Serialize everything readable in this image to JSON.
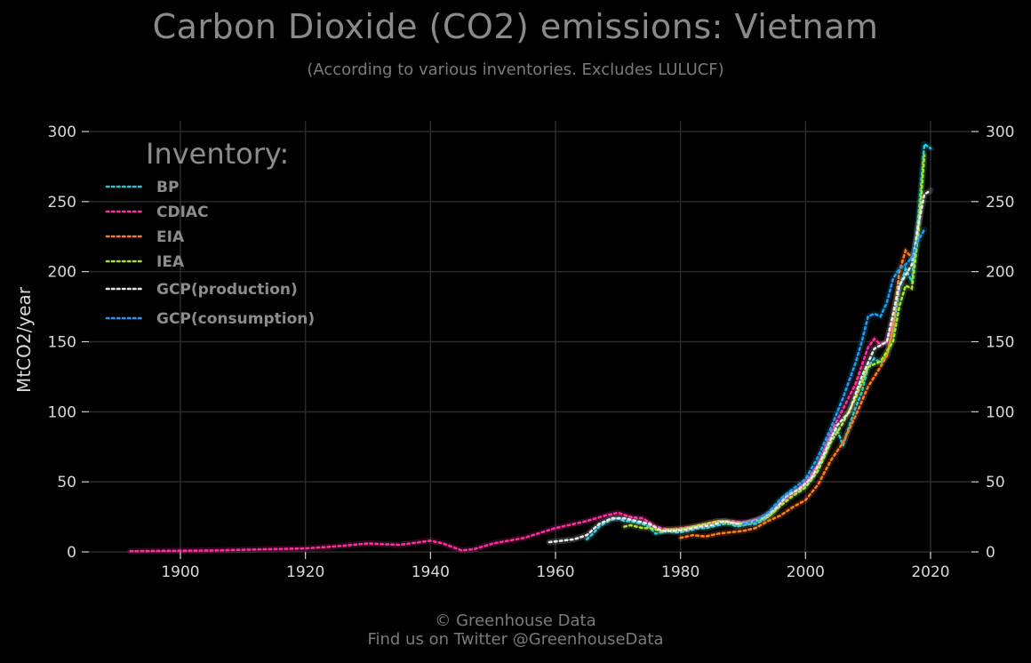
{
  "header": {
    "title": "Carbon Dioxide (CO2) emissions: Vietnam",
    "subtitle": "(According to various inventories. Excludes LULUCF)"
  },
  "footer": {
    "line1": "© Greenhouse Data",
    "line2": "Find us on Twitter @GreenhouseData"
  },
  "legend": {
    "title": "Inventory:",
    "placement": "top-left"
  },
  "colors": {
    "background": "#000000",
    "grid": "#2a2a2a",
    "axis_text": "#d8d8d8",
    "legend_text": "#8c8c8c"
  },
  "chart_data": {
    "type": "line",
    "title": "Carbon Dioxide (CO2) emissions: Vietnam",
    "subtitle": "(According to various inventories. Excludes LULUCF)",
    "xlabel": "",
    "ylabel": "MtCO2/year",
    "xlim": [
      1883,
      2026
    ],
    "ylim": [
      0,
      300
    ],
    "x_ticks": [
      1900,
      1920,
      1940,
      1960,
      1980,
      2000,
      2020
    ],
    "y_ticks": [
      0,
      50,
      100,
      150,
      200,
      250,
      300
    ],
    "y_axis_right": true,
    "grid": true,
    "line_style": "dotted",
    "series": [
      {
        "name": "BP",
        "color": "#1ec8d8",
        "points": [
          [
            1965,
            9
          ],
          [
            1966,
            13
          ],
          [
            1967,
            18
          ],
          [
            1968,
            21
          ],
          [
            1969,
            23
          ],
          [
            1970,
            24
          ],
          [
            1971,
            22
          ],
          [
            1972,
            22
          ],
          [
            1973,
            21
          ],
          [
            1974,
            20
          ],
          [
            1975,
            18
          ],
          [
            1976,
            13
          ],
          [
            1977,
            14
          ],
          [
            1978,
            15
          ],
          [
            1979,
            14
          ],
          [
            1980,
            14
          ],
          [
            1981,
            15
          ],
          [
            1982,
            16
          ],
          [
            1983,
            17
          ],
          [
            1984,
            17
          ],
          [
            1985,
            18
          ],
          [
            1986,
            19
          ],
          [
            1987,
            20
          ],
          [
            1988,
            20
          ],
          [
            1989,
            18
          ],
          [
            1990,
            19
          ],
          [
            1991,
            20
          ],
          [
            1992,
            20
          ],
          [
            1993,
            22
          ],
          [
            1994,
            25
          ],
          [
            1995,
            29
          ],
          [
            1996,
            35
          ],
          [
            1997,
            40
          ],
          [
            1998,
            43
          ],
          [
            1999,
            44
          ],
          [
            2000,
            48
          ],
          [
            2001,
            54
          ],
          [
            2002,
            62
          ],
          [
            2003,
            70
          ],
          [
            2004,
            82
          ],
          [
            2005,
            88
          ],
          [
            2006,
            76
          ],
          [
            2007,
            90
          ],
          [
            2008,
            103
          ],
          [
            2009,
            114
          ],
          [
            2010,
            132
          ],
          [
            2011,
            138
          ],
          [
            2012,
            135
          ],
          [
            2013,
            140
          ],
          [
            2014,
            158
          ],
          [
            2015,
            188
          ],
          [
            2016,
            202
          ],
          [
            2017,
            193
          ],
          [
            2018,
            236
          ],
          [
            2019,
            291
          ],
          [
            2020,
            288
          ]
        ]
      },
      {
        "name": "CDIAC",
        "color": "#ff2d9c",
        "points": [
          [
            1892,
            0.5
          ],
          [
            1900,
            0.8
          ],
          [
            1905,
            1
          ],
          [
            1910,
            1.5
          ],
          [
            1915,
            2
          ],
          [
            1920,
            2.5
          ],
          [
            1925,
            4
          ],
          [
            1930,
            6
          ],
          [
            1935,
            5
          ],
          [
            1940,
            8
          ],
          [
            1942,
            6
          ],
          [
            1945,
            1
          ],
          [
            1947,
            2
          ],
          [
            1950,
            6
          ],
          [
            1955,
            10
          ],
          [
            1960,
            17
          ],
          [
            1965,
            22
          ],
          [
            1968,
            26
          ],
          [
            1970,
            28
          ],
          [
            1972,
            25
          ],
          [
            1974,
            24
          ],
          [
            1976,
            18
          ],
          [
            1978,
            16
          ],
          [
            1980,
            17
          ],
          [
            1982,
            18
          ],
          [
            1984,
            20
          ],
          [
            1986,
            22
          ],
          [
            1988,
            22
          ],
          [
            1990,
            21
          ],
          [
            1992,
            23
          ],
          [
            1994,
            26
          ],
          [
            1996,
            35
          ],
          [
            1998,
            42
          ],
          [
            2000,
            50
          ],
          [
            2002,
            62
          ],
          [
            2004,
            85
          ],
          [
            2006,
            102
          ],
          [
            2008,
            120
          ],
          [
            2010,
            146
          ],
          [
            2011,
            152
          ],
          [
            2012,
            148
          ],
          [
            2013,
            150
          ],
          [
            2014,
            165
          ]
        ]
      },
      {
        "name": "EIA",
        "color": "#ff7a1a",
        "points": [
          [
            1980,
            10
          ],
          [
            1982,
            12
          ],
          [
            1984,
            11
          ],
          [
            1986,
            13
          ],
          [
            1988,
            14
          ],
          [
            1990,
            15
          ],
          [
            1992,
            17
          ],
          [
            1994,
            22
          ],
          [
            1996,
            26
          ],
          [
            1998,
            32
          ],
          [
            2000,
            37
          ],
          [
            2002,
            48
          ],
          [
            2004,
            65
          ],
          [
            2006,
            78
          ],
          [
            2008,
            97
          ],
          [
            2010,
            118
          ],
          [
            2012,
            132
          ],
          [
            2013,
            140
          ],
          [
            2014,
            160
          ],
          [
            2015,
            200
          ],
          [
            2016,
            215
          ],
          [
            2017,
            210
          ]
        ]
      },
      {
        "name": "IEA",
        "color": "#a8e61d",
        "points": [
          [
            1971,
            18
          ],
          [
            1972,
            19
          ],
          [
            1973,
            18
          ],
          [
            1974,
            17
          ],
          [
            1975,
            17
          ],
          [
            1976,
            16
          ],
          [
            1977,
            15
          ],
          [
            1978,
            16
          ],
          [
            1979,
            16
          ],
          [
            1980,
            16
          ],
          [
            1982,
            18
          ],
          [
            1984,
            20
          ],
          [
            1986,
            22
          ],
          [
            1988,
            21
          ],
          [
            1990,
            20
          ],
          [
            1992,
            22
          ],
          [
            1994,
            25
          ],
          [
            1996,
            33
          ],
          [
            1998,
            40
          ],
          [
            2000,
            46
          ],
          [
            2002,
            58
          ],
          [
            2004,
            78
          ],
          [
            2006,
            92
          ],
          [
            2008,
            110
          ],
          [
            2010,
            132
          ],
          [
            2012,
            136
          ],
          [
            2014,
            150
          ],
          [
            2015,
            175
          ],
          [
            2016,
            190
          ],
          [
            2017,
            188
          ],
          [
            2018,
            225
          ],
          [
            2019,
            283
          ]
        ]
      },
      {
        "name": "GCP(production)",
        "color": "#e8e8e8",
        "points": [
          [
            1959,
            7
          ],
          [
            1961,
            8
          ],
          [
            1963,
            9
          ],
          [
            1965,
            12
          ],
          [
            1967,
            20
          ],
          [
            1969,
            24
          ],
          [
            1971,
            24
          ],
          [
            1973,
            22
          ],
          [
            1975,
            20
          ],
          [
            1977,
            15
          ],
          [
            1979,
            15
          ],
          [
            1981,
            16
          ],
          [
            1983,
            18
          ],
          [
            1985,
            19
          ],
          [
            1987,
            22
          ],
          [
            1989,
            20
          ],
          [
            1991,
            21
          ],
          [
            1993,
            24
          ],
          [
            1995,
            30
          ],
          [
            1997,
            40
          ],
          [
            1999,
            45
          ],
          [
            2001,
            53
          ],
          [
            2003,
            70
          ],
          [
            2005,
            90
          ],
          [
            2007,
            100
          ],
          [
            2009,
            125
          ],
          [
            2011,
            145
          ],
          [
            2013,
            150
          ],
          [
            2015,
            190
          ],
          [
            2017,
            205
          ],
          [
            2018,
            232
          ],
          [
            2019,
            255
          ],
          [
            2020,
            258
          ]
        ]
      },
      {
        "name": "GCP(consumption)",
        "color": "#1a9cf0",
        "points": [
          [
            1990,
            20
          ],
          [
            1992,
            22
          ],
          [
            1994,
            28
          ],
          [
            1996,
            38
          ],
          [
            1998,
            45
          ],
          [
            2000,
            52
          ],
          [
            2002,
            68
          ],
          [
            2004,
            88
          ],
          [
            2006,
            110
          ],
          [
            2008,
            135
          ],
          [
            2009,
            150
          ],
          [
            2010,
            168
          ],
          [
            2011,
            170
          ],
          [
            2012,
            168
          ],
          [
            2013,
            178
          ],
          [
            2014,
            195
          ],
          [
            2015,
            202
          ],
          [
            2016,
            205
          ],
          [
            2017,
            210
          ],
          [
            2018,
            222
          ],
          [
            2019,
            230
          ]
        ]
      }
    ]
  }
}
